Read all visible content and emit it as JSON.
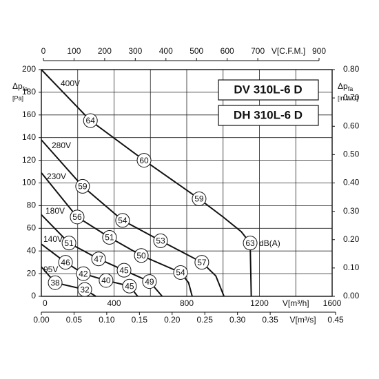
{
  "chart_data": {
    "type": "line",
    "models": [
      "DV 310L-6 D",
      "DH 310L-6 D"
    ],
    "noise_unit": "dB(A)",
    "x_label": "V[m³/h]",
    "x_top_label": "V[C.F.M.]",
    "x_bottom2_label": "V[m³/s]",
    "y_label": {
      "symbol": "Δp",
      "subscript": "fa",
      "unit": "[Pa]"
    },
    "y2_label": {
      "symbol": "Δp",
      "subscript": "fa",
      "unit": "[in.WG]"
    },
    "xlim": [
      0,
      1600
    ],
    "xticks": [
      0,
      400,
      800,
      1200,
      1600
    ],
    "xgrid": [
      0,
      200,
      400,
      600,
      800,
      1000,
      1200,
      1400,
      1600
    ],
    "xtoplim": [
      0,
      900
    ],
    "xtopticks": [
      0,
      100,
      200,
      300,
      400,
      500,
      600,
      700,
      900
    ],
    "xbottom2lim": [
      0,
      0.45
    ],
    "xbottom2ticks": [
      {
        "value": 0,
        "label": "0.00"
      },
      0.05,
      {
        "value": 0.1,
        "label": "0.10"
      },
      0.15,
      {
        "value": 0.2,
        "label": "0.20"
      },
      0.25,
      {
        "value": 0.3,
        "label": "0.30"
      },
      0.35,
      0.45
    ],
    "ylim": [
      0,
      200
    ],
    "yticks": [
      0,
      20,
      40,
      60,
      80,
      100,
      120,
      140,
      160,
      180,
      200
    ],
    "y2lim": [
      0,
      0.8
    ],
    "y2ticks": [
      {
        "value": 0,
        "label": "0.00"
      },
      {
        "value": 0.1,
        "label": "0.10"
      },
      {
        "value": 0.2,
        "label": "0.20"
      },
      {
        "value": 0.3,
        "label": "0.30"
      },
      {
        "value": 0.4,
        "label": "0.40"
      },
      {
        "value": 0.5,
        "label": "0.50"
      },
      {
        "value": 0.6,
        "label": "0.60"
      },
      {
        "value": 0.7,
        "label": "0.70"
      },
      {
        "value": 0.8,
        "label": "0.80"
      }
    ],
    "grid": true,
    "color": "#111111",
    "series": [
      {
        "name": "400V",
        "x": [
          0,
          270,
          565,
          868,
          1000,
          1100,
          1149,
          1155
        ],
        "values": [
          200,
          155,
          120,
          86,
          70,
          57,
          47,
          0
        ],
        "marker_labels": [
          null,
          "64",
          "60",
          "59",
          null,
          null,
          "63",
          null
        ]
      },
      {
        "name": "280V",
        "x": [
          0,
          227,
          447,
          656,
          883,
          960,
          1005
        ],
        "values": [
          138,
          97,
          67,
          49,
          30,
          18,
          0
        ],
        "marker_labels": [
          null,
          "59",
          "54",
          "53",
          "57",
          null,
          null
        ]
      },
      {
        "name": "230V",
        "x": [
          0,
          197,
          375,
          550,
          766,
          810,
          830
        ],
        "values": [
          109,
          70,
          52,
          36,
          21,
          12,
          0
        ],
        "marker_labels": [
          null,
          "56",
          "51",
          "50",
          "54",
          null,
          null
        ]
      },
      {
        "name": "180V",
        "x": [
          0,
          152,
          315,
          455,
          595,
          665
        ],
        "values": [
          72,
          47,
          33,
          23,
          13,
          0
        ],
        "marker_labels": [
          null,
          "51",
          "47",
          "45",
          "49",
          null
        ]
      },
      {
        "name": "140V",
        "x": [
          0,
          133,
          231,
          356,
          485,
          530
        ],
        "values": [
          46,
          30,
          20,
          14,
          9,
          0
        ],
        "marker_labels": [
          null,
          "46",
          "42",
          "40",
          "45",
          null
        ]
      },
      {
        "name": "95V",
        "x": [
          0,
          76,
          239,
          300
        ],
        "values": [
          26,
          12,
          6,
          0
        ],
        "marker_labels": [
          null,
          "38",
          "32",
          null
        ]
      }
    ]
  }
}
